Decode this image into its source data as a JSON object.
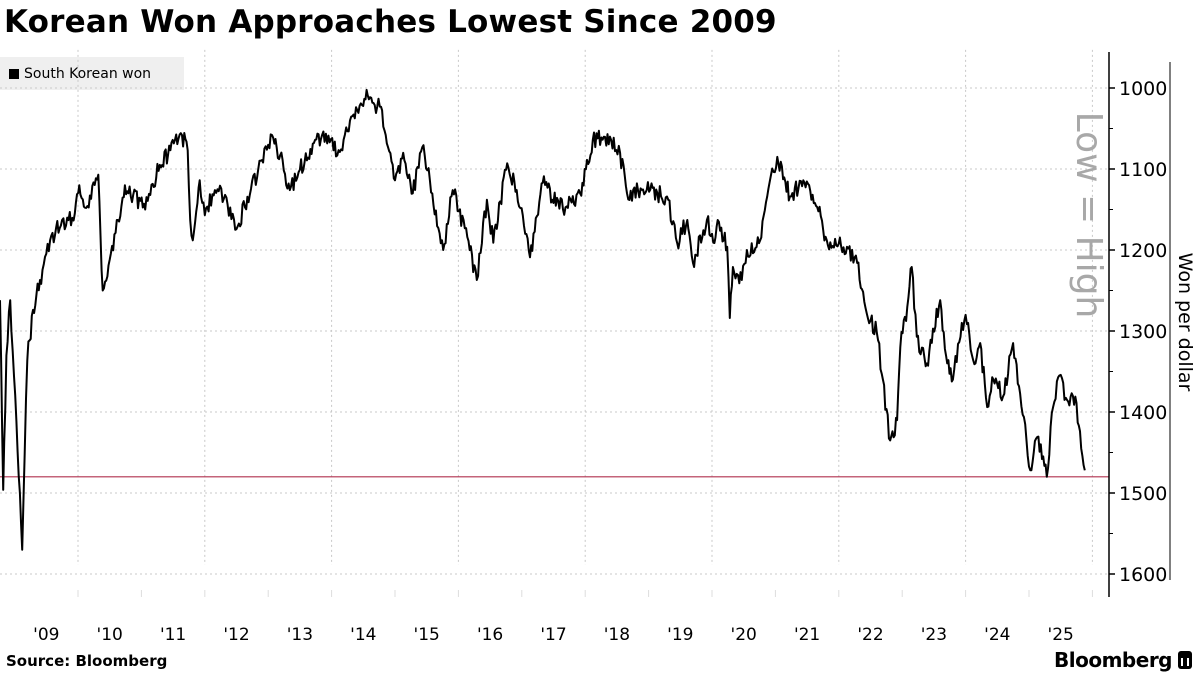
{
  "chart_data": {
    "type": "line",
    "title": "Korean Won Approaches Lowest Since 2009",
    "xlabel": "",
    "ylabel": "Won per dollar",
    "annotation": "Low = High",
    "y_inverted": true,
    "ylim": [
      953,
      1626
    ],
    "xlim": [
      2008.77,
      2026.2
    ],
    "yticks": [
      1000,
      1100,
      1200,
      1300,
      1400,
      1500,
      1600
    ],
    "xtick_labels": [
      "'09",
      "'10",
      "'11",
      "'12",
      "'13",
      "'14",
      "'15",
      "'16",
      "'17",
      "'18",
      "'19",
      "'20",
      "'21",
      "'22",
      "'23",
      "'24",
      "'25"
    ],
    "xtick_years": [
      2009,
      2010,
      2011,
      2012,
      2013,
      2014,
      2015,
      2016,
      2017,
      2018,
      2019,
      2020,
      2021,
      2022,
      2023,
      2024,
      2025
    ],
    "grid": true,
    "legend_position": "top-left",
    "reference_line": {
      "value": 1480,
      "color": "#b0304f"
    },
    "series": [
      {
        "name": "South Korean won",
        "color": "#000000",
        "points": [
          [
            2008.77,
            1262
          ],
          [
            2008.82,
            1496
          ],
          [
            2008.87,
            1330
          ],
          [
            2008.93,
            1262
          ],
          [
            2009.01,
            1379
          ],
          [
            2009.12,
            1570
          ],
          [
            2009.2,
            1336
          ],
          [
            2009.29,
            1274
          ],
          [
            2009.4,
            1237
          ],
          [
            2009.56,
            1188
          ],
          [
            2009.75,
            1163
          ],
          [
            2009.81,
            1170
          ],
          [
            2009.95,
            1155
          ],
          [
            2010.02,
            1120
          ],
          [
            2010.13,
            1148
          ],
          [
            2010.32,
            1107
          ],
          [
            2010.39,
            1250
          ],
          [
            2010.5,
            1212
          ],
          [
            2010.63,
            1163
          ],
          [
            2010.74,
            1120
          ],
          [
            2010.87,
            1132
          ],
          [
            2011.06,
            1150
          ],
          [
            2011.14,
            1132
          ],
          [
            2011.29,
            1095
          ],
          [
            2011.42,
            1083
          ],
          [
            2011.53,
            1064
          ],
          [
            2011.64,
            1058
          ],
          [
            2011.73,
            1077
          ],
          [
            2011.77,
            1163
          ],
          [
            2011.81,
            1188
          ],
          [
            2011.92,
            1114
          ],
          [
            2012.0,
            1157
          ],
          [
            2012.16,
            1126
          ],
          [
            2012.32,
            1132
          ],
          [
            2012.48,
            1175
          ],
          [
            2012.71,
            1132
          ],
          [
            2012.9,
            1089
          ],
          [
            2013.06,
            1058
          ],
          [
            2013.19,
            1083
          ],
          [
            2013.34,
            1126
          ],
          [
            2013.5,
            1101
          ],
          [
            2013.74,
            1064
          ],
          [
            2013.85,
            1058
          ],
          [
            2013.97,
            1067
          ],
          [
            2014.13,
            1079
          ],
          [
            2014.29,
            1040
          ],
          [
            2014.48,
            1021
          ],
          [
            2014.57,
            1009
          ],
          [
            2014.68,
            1021
          ],
          [
            2014.76,
            1023
          ],
          [
            2014.89,
            1073
          ],
          [
            2015.0,
            1114
          ],
          [
            2015.13,
            1080
          ],
          [
            2015.28,
            1130
          ],
          [
            2015.43,
            1073
          ],
          [
            2015.55,
            1114
          ],
          [
            2015.76,
            1200
          ],
          [
            2015.91,
            1126
          ],
          [
            2016.14,
            1184
          ],
          [
            2016.29,
            1237
          ],
          [
            2016.45,
            1138
          ],
          [
            2016.55,
            1191
          ],
          [
            2016.77,
            1093
          ],
          [
            2016.92,
            1126
          ],
          [
            2017.13,
            1209
          ],
          [
            2017.33,
            1117
          ],
          [
            2017.65,
            1150
          ],
          [
            2017.92,
            1130
          ],
          [
            2018.12,
            1064
          ],
          [
            2018.39,
            1060
          ],
          [
            2018.55,
            1080
          ],
          [
            2018.66,
            1130
          ],
          [
            2018.97,
            1126
          ],
          [
            2019.29,
            1134
          ],
          [
            2019.45,
            1191
          ],
          [
            2019.61,
            1163
          ],
          [
            2019.7,
            1216
          ],
          [
            2019.92,
            1163
          ],
          [
            2020.02,
            1191
          ],
          [
            2020.09,
            1163
          ],
          [
            2020.24,
            1196
          ],
          [
            2020.28,
            1284
          ],
          [
            2020.33,
            1221
          ],
          [
            2020.47,
            1237
          ],
          [
            2020.55,
            1200
          ],
          [
            2020.76,
            1188
          ],
          [
            2020.87,
            1134
          ],
          [
            2021.03,
            1085
          ],
          [
            2021.23,
            1134
          ],
          [
            2021.44,
            1114
          ],
          [
            2021.66,
            1147
          ],
          [
            2021.81,
            1188
          ],
          [
            2022.13,
            1196
          ],
          [
            2022.29,
            1216
          ],
          [
            2022.44,
            1278
          ],
          [
            2022.6,
            1302
          ],
          [
            2022.81,
            1435
          ],
          [
            2022.92,
            1410
          ],
          [
            2022.97,
            1320
          ],
          [
            2023.08,
            1270
          ],
          [
            2023.15,
            1221
          ],
          [
            2023.23,
            1307
          ],
          [
            2023.39,
            1340
          ],
          [
            2023.6,
            1262
          ],
          [
            2023.71,
            1340
          ],
          [
            2023.8,
            1360
          ],
          [
            2023.94,
            1290
          ],
          [
            2024.04,
            1290
          ],
          [
            2024.12,
            1336
          ],
          [
            2024.23,
            1315
          ],
          [
            2024.34,
            1394
          ],
          [
            2024.42,
            1357
          ],
          [
            2024.59,
            1381
          ],
          [
            2024.75,
            1315
          ],
          [
            2024.86,
            1377
          ],
          [
            2025.02,
            1472
          ],
          [
            2025.13,
            1431
          ],
          [
            2025.28,
            1480
          ],
          [
            2025.38,
            1394
          ],
          [
            2025.46,
            1357
          ],
          [
            2025.6,
            1385
          ],
          [
            2025.73,
            1381
          ],
          [
            2025.88,
            1472
          ]
        ]
      }
    ],
    "source": "Source: Bloomberg"
  },
  "legend": {
    "label": "South Korean won"
  },
  "footer": {
    "source": "Source: Bloomberg",
    "brand": "Bloomberg"
  }
}
